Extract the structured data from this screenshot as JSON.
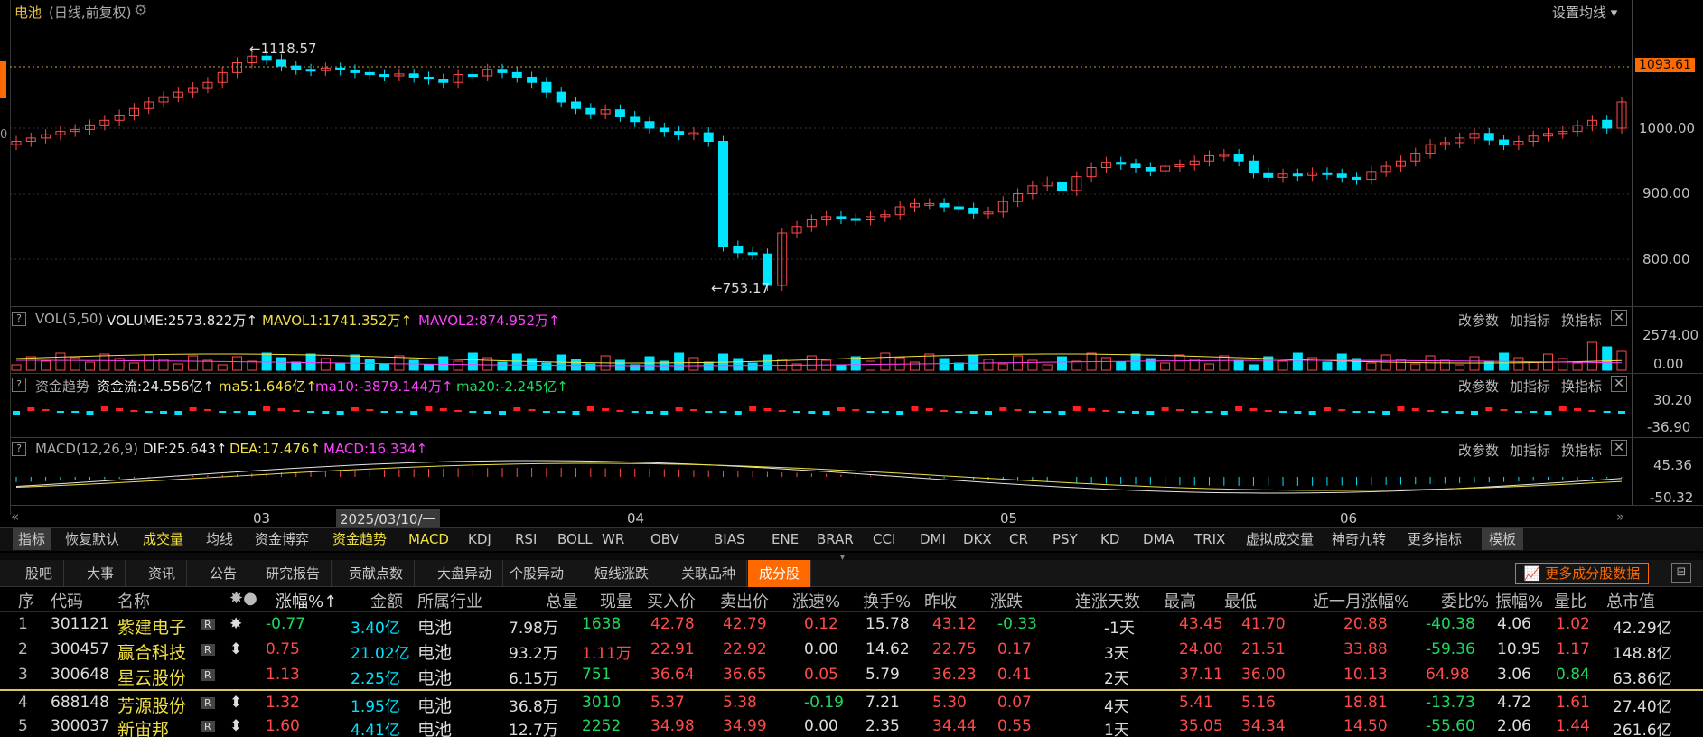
{
  "stock": {
    "name": "电池",
    "mode": "(日线,前复权)",
    "settings_btn": "设置均线"
  },
  "price_axis": [
    "1093.61",
    "1000.00",
    "900.00",
    "800.00"
  ],
  "annotations": {
    "high": "←1118.57",
    "low": "←753.17"
  },
  "vol": {
    "name": "VOL(5,50)",
    "v1": "VOLUME:2573.822万↑",
    "v2": "MAVOL1:1741.352万↑",
    "v3": "MAVOL2:874.952万↑",
    "axis": [
      "2574.00",
      "0.00"
    ]
  },
  "fund": {
    "name": "资金趋势",
    "v1": "资金流:24.556亿↑",
    "v2": "ma5:1.646亿↑",
    "v3": "ma10:-3879.144万↑",
    "v4": "ma20:-2.245亿↑",
    "axis": [
      "30.20",
      "-36.90"
    ]
  },
  "macd": {
    "name": "MACD(12,26,9)",
    "v1": "DIF:25.643↑",
    "v2": "DEA:17.476↑",
    "v3": "MACD:16.334↑",
    "axis": [
      "45.36",
      "-50.32"
    ]
  },
  "panel_links": {
    "params": "改参数",
    "add": "加指标",
    "switch": "换指标"
  },
  "timeline": {
    "months": [
      "03",
      "04",
      "05",
      "06"
    ],
    "cursor_date": "2025/03/10/一"
  },
  "indicator_tabs": [
    "指标",
    "恢复默认",
    "成交量",
    "均线",
    "资金博弈",
    "资金趋势",
    "MACD",
    "KDJ",
    "RSI",
    "BOLL",
    "WR",
    "OBV",
    "BIAS",
    "ENE",
    "BRAR",
    "CCI",
    "DMI",
    "DKX",
    "CR",
    "PSY",
    "KD",
    "DMA",
    "TRIX",
    "虚拟成交量",
    "神奇九转",
    "更多指标",
    "模板"
  ],
  "bottom_tabs": [
    "股吧",
    "大事",
    "资讯",
    "公告",
    "研究报告",
    "贡献点数",
    "大盘异动",
    "个股异动",
    "短线涨跌",
    "关联品种",
    "成分股"
  ],
  "more_btn": "更多成分股数据",
  "table": {
    "headers": [
      "序",
      "代码",
      "名称",
      "✸●",
      "涨幅%↑",
      "金额",
      "所属行业",
      "总量",
      "现量",
      "买入价",
      "卖出价",
      "涨速%",
      "换手%",
      "昨收",
      "涨跌",
      "连涨天数",
      "最高",
      "最低",
      "近一月涨幅%",
      "委比%",
      "振幅%",
      "量比",
      "总市值"
    ],
    "rows": [
      [
        "1",
        "301121",
        "紫建电子",
        "R",
        "✸",
        "-0.77",
        "3.40亿",
        "电池",
        "7.98万",
        "1638",
        "42.78",
        "42.79",
        "0.12",
        "15.78",
        "43.12",
        "-0.33",
        "-1天",
        "43.45",
        "41.70",
        "20.88",
        "-40.38",
        "4.06",
        "1.02",
        "42.29亿"
      ],
      [
        "2",
        "300457",
        "赢合科技",
        "R",
        "⬍",
        "0.75",
        "21.02亿",
        "电池",
        "93.2万",
        "1.11万",
        "22.91",
        "22.92",
        "0.00",
        "14.62",
        "22.75",
        "0.17",
        "3天",
        "24.00",
        "21.51",
        "33.88",
        "-59.36",
        "10.95",
        "1.17",
        "148.8亿"
      ],
      [
        "3",
        "300648",
        "星云股份",
        "R",
        "",
        "1.13",
        "2.25亿",
        "电池",
        "6.15万",
        "751",
        "36.64",
        "36.65",
        "0.05",
        "5.79",
        "36.23",
        "0.41",
        "2天",
        "37.11",
        "36.00",
        "10.13",
        "64.98",
        "3.06",
        "0.84",
        "63.86亿"
      ],
      [
        "4",
        "688148",
        "芳源股份",
        "R",
        "⬍",
        "1.32",
        "1.95亿",
        "电池",
        "36.8万",
        "3010",
        "5.37",
        "5.38",
        "-0.19",
        "7.21",
        "5.30",
        "0.07",
        "4天",
        "5.41",
        "5.16",
        "18.81",
        "-13.73",
        "4.72",
        "1.61",
        "27.40亿"
      ],
      [
        "5",
        "300037",
        "新宙邦",
        "R",
        "⬍",
        "1.60",
        "4.41亿",
        "电池",
        "12.7万",
        "2252",
        "34.98",
        "34.99",
        "0.00",
        "2.35",
        "34.44",
        "0.55",
        "1天",
        "35.05",
        "34.34",
        "14.50",
        "-55.60",
        "2.06",
        "1.44",
        "261.6亿"
      ]
    ]
  },
  "colors": {
    "up": "#ff4a4a",
    "down": "#00e5ff",
    "accent": "#ff6a00"
  }
}
